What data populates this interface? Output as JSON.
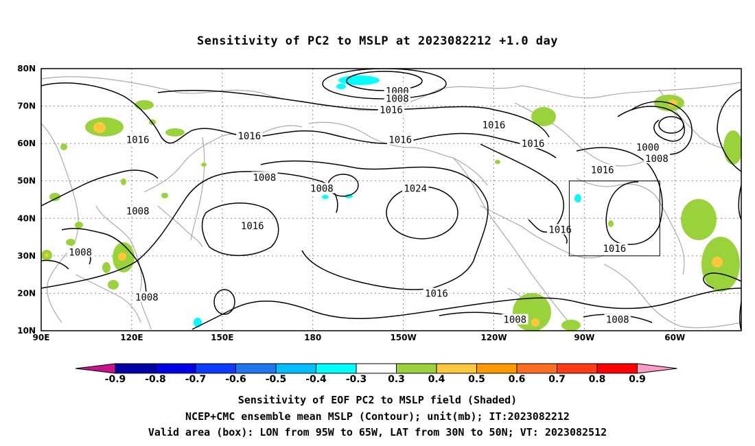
{
  "title": "Sensitivity of PC2 to MSLP at 2023082212 +1.0 day",
  "map": {
    "lon_labels": [
      "90E",
      "120E",
      "150E",
      "180",
      "150W",
      "120W",
      "90W",
      "60W"
    ],
    "lat_labels": [
      "80N",
      "70N",
      "60N",
      "50N",
      "40N",
      "30N",
      "20N",
      "10N"
    ],
    "lon_range": [
      90,
      322
    ],
    "lat_range": [
      10,
      80
    ],
    "valid_box": {
      "lon": [
        265,
        295
      ],
      "lat": [
        30,
        50
      ]
    },
    "coastline_color": "#aaaaaa",
    "contour_color": "#000000",
    "contour_labels": [
      {
        "text": "1000",
        "lon": 208,
        "lat": 74
      },
      {
        "text": "1008",
        "lon": 208,
        "lat": 72
      },
      {
        "text": "1016",
        "lon": 206,
        "lat": 69
      },
      {
        "text": "1016",
        "lon": 122,
        "lat": 61
      },
      {
        "text": "1016",
        "lon": 159,
        "lat": 62
      },
      {
        "text": "1016",
        "lon": 209,
        "lat": 61
      },
      {
        "text": "1016",
        "lon": 240,
        "lat": 65
      },
      {
        "text": "1016",
        "lon": 253,
        "lat": 60
      },
      {
        "text": "1016",
        "lon": 276,
        "lat": 53
      },
      {
        "text": "1000",
        "lon": 291,
        "lat": 59
      },
      {
        "text": "1008",
        "lon": 294,
        "lat": 56
      },
      {
        "text": "1008",
        "lon": 164,
        "lat": 51
      },
      {
        "text": "1008",
        "lon": 183,
        "lat": 48
      },
      {
        "text": "1008",
        "lon": 122,
        "lat": 42
      },
      {
        "text": "1024",
        "lon": 214,
        "lat": 48
      },
      {
        "text": "1016",
        "lon": 160,
        "lat": 38
      },
      {
        "text": "1016",
        "lon": 262,
        "lat": 37
      },
      {
        "text": "1016",
        "lon": 280,
        "lat": 32
      },
      {
        "text": "1008",
        "lon": 103,
        "lat": 31
      },
      {
        "text": "1016",
        "lon": 221,
        "lat": 20
      },
      {
        "text": "1008",
        "lon": 125,
        "lat": 19
      },
      {
        "text": "1008",
        "lon": 247,
        "lat": 13
      },
      {
        "text": "1008",
        "lon": 281,
        "lat": 13
      }
    ]
  },
  "colorbar": {
    "labels": [
      "-0.9",
      "-0.8",
      "-0.7",
      "-0.6",
      "-0.5",
      "-0.4",
      "-0.3",
      "0.3",
      "0.4",
      "0.5",
      "0.6",
      "0.7",
      "0.8",
      "0.9"
    ],
    "colors": [
      "#0000a8",
      "#0000e6",
      "#0a3cff",
      "#1e78f0",
      "#00beff",
      "#00ffff",
      "#ffffff",
      "#9ad23c",
      "#ffc83c",
      "#ff9b00",
      "#ff6e1e",
      "#ff3c14",
      "#ff0000"
    ],
    "low_end_color": "#c8148c",
    "high_end_color": "#ff9bc8"
  },
  "captions": {
    "line1": "Sensitivity of EOF PC2 to MSLP field (Shaded)",
    "line2": "NCEP+CMC ensemble mean MSLP (Contour); unit(mb); IT:2023082212",
    "line3": "Valid area (box): LON from 95W to 65W, LAT from 30N to 50N; VT: 2023082512"
  }
}
